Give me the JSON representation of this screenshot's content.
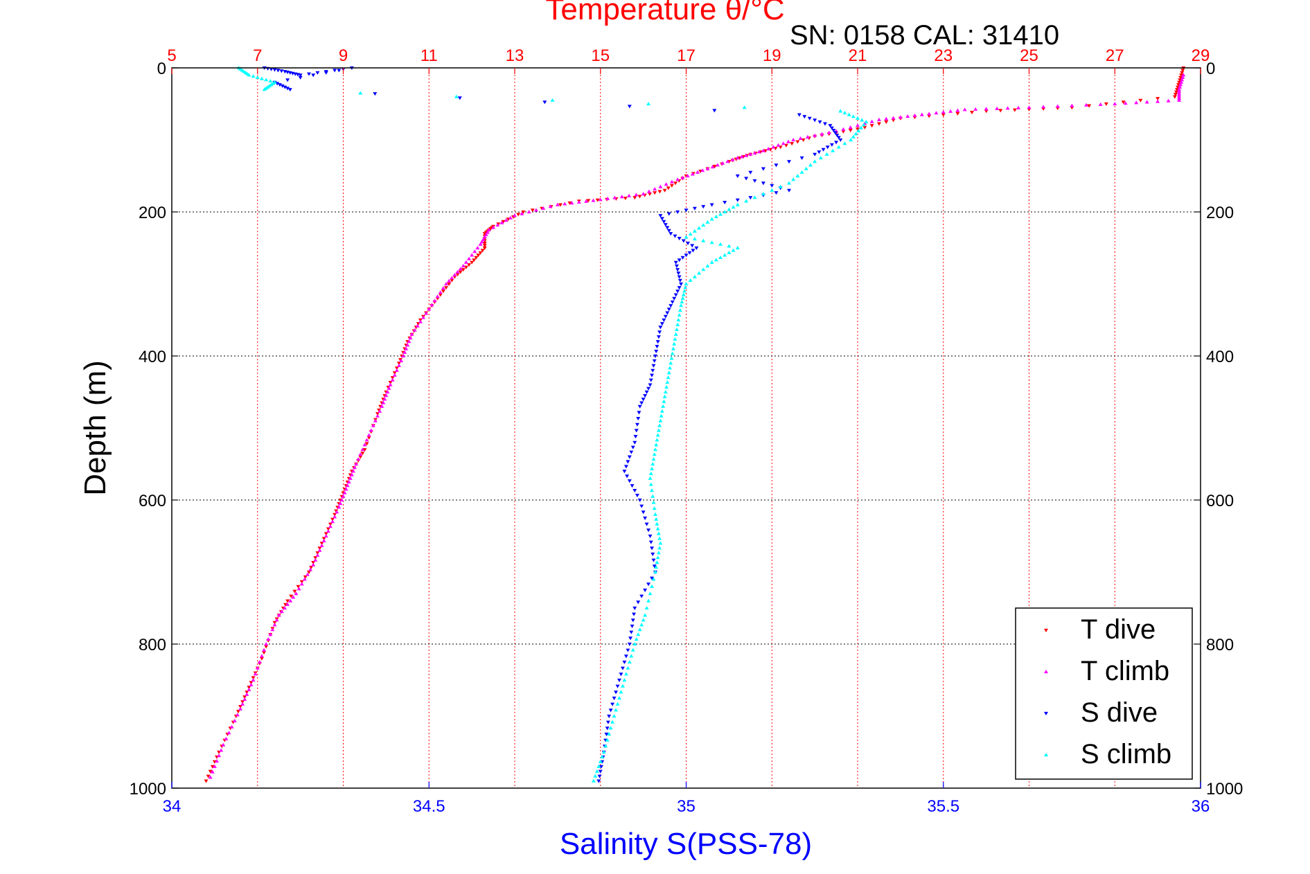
{
  "header": {
    "sn_cal": "SN: 0158  CAL: 31410"
  },
  "colors": {
    "temperature": "#ff0000",
    "salinity": "#0000ff",
    "t_dive": "#ff0000",
    "t_climb": "#ff00ff",
    "s_dive": "#0000ff",
    "s_climb": "#00ffff",
    "grid_t": "#ff0000",
    "grid_d": "#000000"
  },
  "chart_data": {
    "type": "scatter",
    "axes": {
      "top_x": {
        "label": "Temperature θ/°C",
        "range": [
          5,
          29
        ],
        "ticks": [
          "5",
          "7",
          "9",
          "11",
          "13",
          "15",
          "17",
          "19",
          "21",
          "23",
          "25",
          "27",
          "29"
        ]
      },
      "bottom_x": {
        "label": "Salinity S(PSS-78)",
        "range": [
          34,
          36
        ],
        "ticks": [
          "34",
          "34.5",
          "35",
          "35.5",
          "36"
        ]
      },
      "left_y": {
        "label": "Depth (m)",
        "range": [
          0,
          1000
        ],
        "inverted": true,
        "ticks": [
          "0",
          "200",
          "400",
          "600",
          "800",
          "1000"
        ]
      },
      "right_y": {
        "range": [
          0,
          1000
        ],
        "inverted": true,
        "ticks": [
          "0",
          "200",
          "400",
          "600",
          "800",
          "1000"
        ]
      }
    },
    "grid": true,
    "legend_position": "bottom-right",
    "legend": [
      "T dive",
      "T climb",
      "S dive",
      "S climb"
    ],
    "series": [
      {
        "name": "T dive",
        "axis": "temperature",
        "marker": "triangle-down",
        "points": [
          [
            28.6,
            0
          ],
          [
            28.5,
            20
          ],
          [
            28.4,
            40
          ],
          [
            26,
            55
          ],
          [
            24,
            60
          ],
          [
            22,
            70
          ],
          [
            21,
            85
          ],
          [
            20,
            95
          ],
          [
            19.2,
            110
          ],
          [
            18.5,
            120
          ],
          [
            18,
            130
          ],
          [
            17,
            150
          ],
          [
            16.5,
            170
          ],
          [
            15.8,
            180
          ],
          [
            14.5,
            185
          ],
          [
            13.2,
            200
          ],
          [
            12.5,
            220
          ],
          [
            12.3,
            230
          ],
          [
            12.3,
            250
          ],
          [
            12,
            270
          ],
          [
            11.6,
            290
          ],
          [
            11.2,
            320
          ],
          [
            10.8,
            350
          ],
          [
            10.5,
            380
          ],
          [
            10.3,
            410
          ],
          [
            10,
            450
          ],
          [
            9.8,
            480
          ],
          [
            9.5,
            530
          ],
          [
            9.2,
            560
          ],
          [
            9,
            590
          ],
          [
            8.8,
            620
          ],
          [
            8.5,
            660
          ],
          [
            8.2,
            700
          ],
          [
            7.7,
            740
          ],
          [
            7.4,
            770
          ],
          [
            7.1,
            820
          ],
          [
            6.8,
            860
          ],
          [
            6.5,
            900
          ],
          [
            6.1,
            950
          ],
          [
            5.8,
            990
          ]
        ]
      },
      {
        "name": "T climb",
        "axis": "temperature",
        "marker": "triangle-up",
        "points": [
          [
            28.6,
            10
          ],
          [
            28.5,
            30
          ],
          [
            28.5,
            45
          ],
          [
            27,
            50
          ],
          [
            25,
            55
          ],
          [
            23.5,
            58
          ],
          [
            22.5,
            65
          ],
          [
            21.5,
            72
          ],
          [
            20.5,
            88
          ],
          [
            19.5,
            100
          ],
          [
            18.8,
            115
          ],
          [
            18.2,
            125
          ],
          [
            17.5,
            140
          ],
          [
            16.8,
            155
          ],
          [
            16,
            175
          ],
          [
            15,
            183
          ],
          [
            14,
            190
          ],
          [
            13,
            205
          ],
          [
            12.4,
            225
          ],
          [
            12.2,
            245
          ],
          [
            11.8,
            275
          ],
          [
            11.4,
            300
          ],
          [
            11,
            335
          ],
          [
            10.6,
            370
          ],
          [
            10.4,
            400
          ],
          [
            10.1,
            440
          ],
          [
            9.9,
            470
          ],
          [
            9.6,
            510
          ],
          [
            9.3,
            550
          ],
          [
            9.1,
            580
          ],
          [
            8.9,
            610
          ],
          [
            8.6,
            650
          ],
          [
            8.3,
            690
          ],
          [
            7.9,
            730
          ],
          [
            7.5,
            760
          ],
          [
            7.2,
            800
          ],
          [
            6.9,
            850
          ],
          [
            6.6,
            890
          ],
          [
            6.2,
            940
          ],
          [
            5.9,
            985
          ]
        ]
      },
      {
        "name": "S dive",
        "axis": "salinity",
        "marker": "triangle-down",
        "points": [
          [
            34.18,
            0
          ],
          [
            34.22,
            5
          ],
          [
            34.25,
            10
          ],
          [
            34.35,
            0
          ],
          [
            34.2,
            20
          ],
          [
            34.23,
            30
          ],
          [
            35.22,
            65
          ],
          [
            35.28,
            80
          ],
          [
            35.3,
            100
          ],
          [
            35.25,
            120
          ],
          [
            35.1,
            150
          ],
          [
            35.2,
            170
          ],
          [
            35.05,
            190
          ],
          [
            34.95,
            205
          ],
          [
            34.97,
            230
          ],
          [
            35.02,
            250
          ],
          [
            34.98,
            270
          ],
          [
            34.99,
            300
          ],
          [
            34.97,
            330
          ],
          [
            34.95,
            360
          ],
          [
            34.94,
            400
          ],
          [
            34.93,
            440
          ],
          [
            34.91,
            470
          ],
          [
            34.9,
            520
          ],
          [
            34.88,
            560
          ],
          [
            34.91,
            600
          ],
          [
            34.93,
            650
          ],
          [
            34.94,
            700
          ],
          [
            34.9,
            750
          ],
          [
            34.89,
            800
          ],
          [
            34.87,
            850
          ],
          [
            34.85,
            900
          ],
          [
            34.84,
            950
          ],
          [
            34.83,
            990
          ]
        ]
      },
      {
        "name": "S climb",
        "axis": "salinity",
        "marker": "triangle-up",
        "points": [
          [
            34.13,
            0
          ],
          [
            34.15,
            10
          ],
          [
            34.2,
            20
          ],
          [
            34.18,
            30
          ],
          [
            35.3,
            60
          ],
          [
            35.35,
            75
          ],
          [
            35.32,
            100
          ],
          [
            35.25,
            130
          ],
          [
            35.2,
            160
          ],
          [
            35.1,
            190
          ],
          [
            35.05,
            210
          ],
          [
            35.0,
            235
          ],
          [
            35.1,
            250
          ],
          [
            35.05,
            270
          ],
          [
            35.0,
            300
          ],
          [
            34.99,
            330
          ],
          [
            34.98,
            370
          ],
          [
            34.97,
            410
          ],
          [
            34.96,
            450
          ],
          [
            34.95,
            490
          ],
          [
            34.94,
            530
          ],
          [
            34.93,
            570
          ],
          [
            34.94,
            620
          ],
          [
            34.95,
            660
          ],
          [
            34.94,
            700
          ],
          [
            34.92,
            760
          ],
          [
            34.9,
            800
          ],
          [
            34.88,
            850
          ],
          [
            34.86,
            900
          ],
          [
            34.84,
            950
          ],
          [
            34.82,
            990
          ]
        ]
      }
    ]
  }
}
